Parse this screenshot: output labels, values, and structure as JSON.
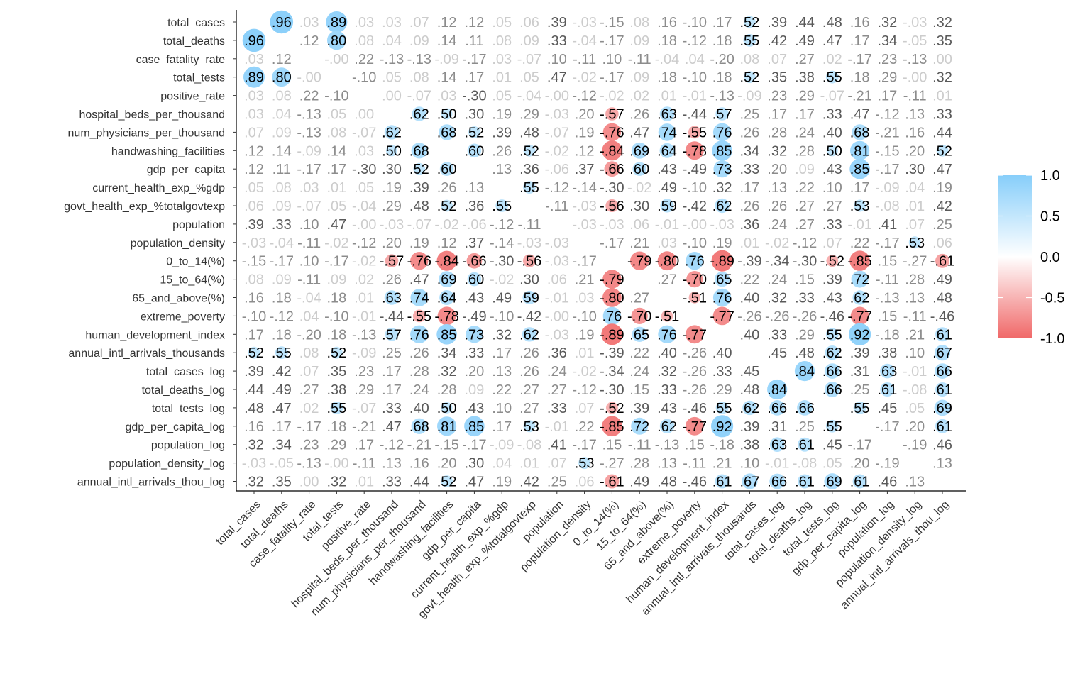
{
  "chart_data": {
    "type": "heatmap",
    "title": "",
    "xlabel": "",
    "ylabel": "",
    "variables": [
      "total_cases",
      "total_deaths",
      "case_fatality_rate",
      "total_tests",
      "positive_rate",
      "hospital_beds_per_thousand",
      "num_physicians_per_thousand",
      "handwashing_facilities",
      "gdp_per_capita",
      "current_health_exp_%gdp",
      "govt_health_exp_%totalgovtexp",
      "population",
      "population_density",
      "0_to_14(%)",
      "15_to_64(%)",
      "65_and_above(%)",
      "extreme_poverty",
      "human_development_index",
      "annual_intl_arrivals_thousands",
      "total_cases_log",
      "total_deaths_log",
      "total_tests_log",
      "gdp_per_capita_log",
      "population_log",
      "population_density_log",
      "annual_intl_arrivals_thou_log"
    ],
    "matrix": [
      [
        null,
        0.96,
        0.03,
        0.89,
        0.03,
        0.03,
        0.07,
        0.12,
        0.12,
        0.05,
        0.06,
        0.39,
        -0.03,
        -0.15,
        0.08,
        0.16,
        -0.1,
        0.17,
        0.52,
        0.39,
        0.44,
        0.48,
        0.16,
        0.32,
        -0.03,
        0.32
      ],
      [
        0.96,
        null,
        0.12,
        0.8,
        0.08,
        0.04,
        0.09,
        0.14,
        0.11,
        0.08,
        0.09,
        0.33,
        -0.04,
        -0.17,
        0.09,
        0.18,
        -0.12,
        0.18,
        0.55,
        0.42,
        0.49,
        0.47,
        0.17,
        0.34,
        -0.05,
        0.35
      ],
      [
        0.03,
        0.12,
        null,
        -0.0,
        0.22,
        -0.13,
        -0.13,
        -0.09,
        -0.17,
        0.03,
        -0.07,
        0.1,
        -0.11,
        0.1,
        -0.11,
        -0.04,
        0.04,
        -0.2,
        0.08,
        0.07,
        0.27,
        0.02,
        -0.17,
        0.23,
        -0.13,
        0.0
      ],
      [
        0.89,
        0.8,
        -0.0,
        null,
        -0.1,
        0.05,
        0.08,
        0.14,
        0.17,
        0.01,
        0.05,
        0.47,
        -0.02,
        -0.17,
        0.09,
        0.18,
        -0.1,
        0.18,
        0.52,
        0.35,
        0.38,
        0.55,
        0.18,
        0.29,
        -0.0,
        0.32
      ],
      [
        0.03,
        0.08,
        0.22,
        -0.1,
        null,
        0.0,
        -0.07,
        0.03,
        -0.3,
        0.05,
        -0.04,
        -0.0,
        -0.12,
        -0.02,
        0.02,
        0.01,
        -0.01,
        -0.13,
        -0.09,
        0.23,
        0.29,
        -0.07,
        -0.21,
        0.17,
        -0.11,
        0.01
      ],
      [
        0.03,
        0.04,
        -0.13,
        0.05,
        0.0,
        null,
        0.62,
        0.5,
        0.3,
        0.19,
        0.29,
        -0.03,
        0.2,
        -0.57,
        0.26,
        0.63,
        -0.44,
        0.57,
        0.25,
        0.17,
        0.17,
        0.33,
        0.47,
        -0.12,
        0.13,
        0.33
      ],
      [
        0.07,
        0.09,
        -0.13,
        0.08,
        -0.07,
        0.62,
        null,
        0.68,
        0.52,
        0.39,
        0.48,
        -0.07,
        0.19,
        -0.76,
        0.47,
        0.74,
        -0.55,
        0.76,
        0.26,
        0.28,
        0.24,
        0.4,
        0.68,
        -0.21,
        0.16,
        0.44
      ],
      [
        0.12,
        0.14,
        -0.09,
        0.14,
        0.03,
        0.5,
        0.68,
        null,
        0.6,
        0.26,
        0.52,
        -0.02,
        0.12,
        -0.84,
        0.69,
        0.64,
        -0.78,
        0.85,
        0.34,
        0.32,
        0.28,
        0.5,
        0.81,
        -0.15,
        0.2,
        0.52
      ],
      [
        0.12,
        0.11,
        -0.17,
        0.17,
        -0.3,
        0.3,
        0.52,
        0.6,
        null,
        0.13,
        0.36,
        -0.06,
        0.37,
        -0.66,
        0.6,
        0.43,
        -0.49,
        0.73,
        0.33,
        0.2,
        0.09,
        0.43,
        0.85,
        -0.17,
        0.3,
        0.47
      ],
      [
        0.05,
        0.08,
        0.03,
        0.01,
        0.05,
        0.19,
        0.39,
        0.26,
        0.13,
        null,
        0.55,
        -0.12,
        -0.14,
        -0.3,
        -0.02,
        0.49,
        -0.1,
        0.32,
        0.17,
        0.13,
        0.22,
        0.1,
        0.17,
        -0.09,
        0.04,
        0.19
      ],
      [
        0.06,
        0.09,
        -0.07,
        0.05,
        -0.04,
        0.29,
        0.48,
        0.52,
        0.36,
        0.55,
        null,
        -0.11,
        -0.03,
        -0.56,
        0.3,
        0.59,
        -0.42,
        0.62,
        0.26,
        0.26,
        0.27,
        0.27,
        0.53,
        -0.08,
        0.01,
        0.42
      ],
      [
        0.39,
        0.33,
        0.1,
        0.47,
        -0.0,
        -0.03,
        -0.07,
        -0.02,
        -0.06,
        -0.12,
        -0.11,
        null,
        -0.03,
        -0.03,
        0.06,
        -0.01,
        -0.0,
        -0.03,
        0.36,
        0.24,
        0.27,
        0.33,
        -0.01,
        0.41,
        0.07,
        0.25
      ],
      [
        -0.03,
        -0.04,
        -0.11,
        -0.02,
        -0.12,
        0.2,
        0.19,
        0.12,
        0.37,
        -0.14,
        -0.03,
        -0.03,
        null,
        -0.17,
        0.21,
        0.03,
        -0.1,
        0.19,
        0.01,
        -0.02,
        -0.12,
        0.07,
        0.22,
        -0.17,
        0.53,
        0.06
      ],
      [
        -0.15,
        -0.17,
        0.1,
        -0.17,
        -0.02,
        -0.57,
        -0.76,
        -0.84,
        -0.66,
        -0.3,
        -0.56,
        -0.03,
        -0.17,
        null,
        -0.79,
        -0.8,
        0.76,
        -0.89,
        -0.39,
        -0.34,
        -0.3,
        -0.52,
        -0.85,
        0.15,
        -0.27,
        -0.61
      ],
      [
        0.08,
        0.09,
        -0.11,
        0.09,
        0.02,
        0.26,
        0.47,
        0.69,
        0.6,
        -0.02,
        0.3,
        0.06,
        0.21,
        -0.79,
        null,
        0.27,
        -0.7,
        0.65,
        0.22,
        0.24,
        0.15,
        0.39,
        0.72,
        -0.11,
        0.28,
        0.49
      ],
      [
        0.16,
        0.18,
        -0.04,
        0.18,
        0.01,
        0.63,
        0.74,
        0.64,
        0.43,
        0.49,
        0.59,
        -0.01,
        0.03,
        -0.8,
        0.27,
        null,
        -0.51,
        0.76,
        0.4,
        0.32,
        0.33,
        0.43,
        0.62,
        -0.13,
        0.13,
        0.48
      ],
      [
        -0.1,
        -0.12,
        0.04,
        -0.1,
        -0.01,
        -0.44,
        -0.55,
        -0.78,
        -0.49,
        -0.1,
        -0.42,
        -0.0,
        -0.1,
        0.76,
        -0.7,
        -0.51,
        null,
        -0.77,
        -0.26,
        -0.26,
        -0.26,
        -0.46,
        -0.77,
        0.15,
        -0.11,
        -0.46
      ],
      [
        0.17,
        0.18,
        -0.2,
        0.18,
        -0.13,
        0.57,
        0.76,
        0.85,
        0.73,
        0.32,
        0.62,
        -0.03,
        0.19,
        -0.89,
        0.65,
        0.76,
        -0.77,
        null,
        0.4,
        0.33,
        0.29,
        0.55,
        0.92,
        -0.18,
        0.21,
        0.61
      ],
      [
        0.52,
        0.55,
        0.08,
        0.52,
        -0.09,
        0.25,
        0.26,
        0.34,
        0.33,
        0.17,
        0.26,
        0.36,
        0.01,
        -0.39,
        0.22,
        0.4,
        -0.26,
        0.4,
        null,
        0.45,
        0.48,
        0.62,
        0.39,
        0.38,
        0.1,
        0.67
      ],
      [
        0.39,
        0.42,
        0.07,
        0.35,
        0.23,
        0.17,
        0.28,
        0.32,
        0.2,
        0.13,
        0.26,
        0.24,
        -0.02,
        -0.34,
        0.24,
        0.32,
        -0.26,
        0.33,
        0.45,
        null,
        0.84,
        0.66,
        0.31,
        0.63,
        -0.01,
        0.66
      ],
      [
        0.44,
        0.49,
        0.27,
        0.38,
        0.29,
        0.17,
        0.24,
        0.28,
        0.09,
        0.22,
        0.27,
        0.27,
        -0.12,
        -0.3,
        0.15,
        0.33,
        -0.26,
        0.29,
        0.48,
        0.84,
        null,
        0.66,
        0.25,
        0.61,
        -0.08,
        0.61
      ],
      [
        0.48,
        0.47,
        0.02,
        0.55,
        -0.07,
        0.33,
        0.4,
        0.5,
        0.43,
        0.1,
        0.27,
        0.33,
        0.07,
        -0.52,
        0.39,
        0.43,
        -0.46,
        0.55,
        0.62,
        0.66,
        0.66,
        null,
        0.55,
        0.45,
        0.05,
        0.69
      ],
      [
        0.16,
        0.17,
        -0.17,
        0.18,
        -0.21,
        0.47,
        0.68,
        0.81,
        0.85,
        0.17,
        0.53,
        -0.01,
        0.22,
        -0.85,
        0.72,
        0.62,
        -0.77,
        0.92,
        0.39,
        0.31,
        0.25,
        0.55,
        null,
        -0.17,
        0.2,
        0.61
      ],
      [
        0.32,
        0.34,
        0.23,
        0.29,
        0.17,
        -0.12,
        -0.21,
        -0.15,
        -0.17,
        -0.09,
        -0.08,
        0.41,
        -0.17,
        0.15,
        -0.11,
        -0.13,
        0.15,
        -0.18,
        0.38,
        0.63,
        0.61,
        0.45,
        -0.17,
        null,
        -0.19,
        0.46
      ],
      [
        -0.03,
        -0.05,
        -0.13,
        -0.0,
        -0.11,
        0.13,
        0.16,
        0.2,
        0.3,
        0.04,
        0.01,
        0.07,
        0.53,
        -0.27,
        0.28,
        0.13,
        -0.11,
        0.21,
        0.1,
        -0.01,
        -0.08,
        0.05,
        0.2,
        -0.19,
        null,
        0.13
      ],
      [
        0.32,
        0.35,
        0.0,
        0.32,
        0.01,
        0.33,
        0.44,
        0.52,
        0.47,
        0.19,
        0.42,
        0.25,
        0.06,
        -0.61,
        0.49,
        0.48,
        -0.46,
        0.61,
        0.67,
        0.66,
        0.61,
        0.69,
        0.61,
        0.46,
        0.13,
        null
      ]
    ],
    "value_range": [
      -1,
      1
    ],
    "colors": {
      "negative": "#f06868",
      "zero": "#ffffff",
      "positive": "#87cefa"
    },
    "legend": {
      "position": "right",
      "ticks": [
        "1.0",
        "0.5",
        "0.0",
        "-0.5",
        "-1.0"
      ]
    },
    "grid": false
  }
}
